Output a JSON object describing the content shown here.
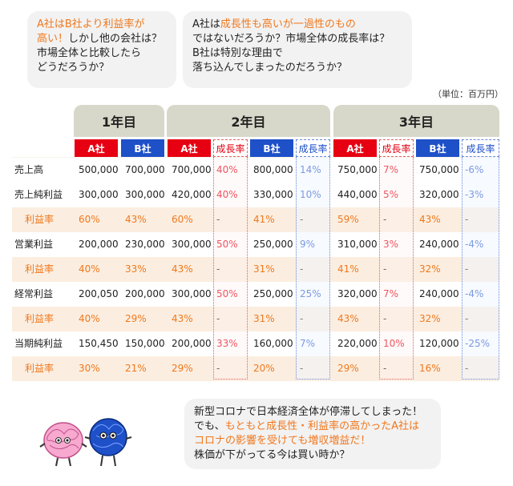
{
  "bubble1": {
    "line1_orange": "A社はB社より利益率が",
    "line2_orange": "高い！",
    "line2_rest": "しかし他の会社は？",
    "line3": "市場全体と比較したら",
    "line4": "どうだろうか？"
  },
  "bubble2": {
    "line1_pre": "A社は",
    "line1_orange": "成長性も高いが一過性のもの",
    "line2": "ではないだろうか？市場全体の成長率は？",
    "line3": "B社は特別な理由で",
    "line4": "落ち込んでしまったのだろうか？"
  },
  "unit": "（単位：百万円）",
  "years": [
    "1年目",
    "2年目",
    "3年目"
  ],
  "headers": {
    "a": "A社",
    "b": "B社",
    "growth": "成長率"
  },
  "rows": [
    {
      "label": "売上高",
      "type": "value",
      "v": [
        "500,000",
        "700,000",
        "700,000",
        "40%",
        "800,000",
        "14%",
        "750,000",
        "7%",
        "750,000",
        "-6%"
      ]
    },
    {
      "label": "売上純利益",
      "type": "value",
      "v": [
        "300,000",
        "300,000",
        "420,000",
        "40%",
        "330,000",
        "10%",
        "440,000",
        "5%",
        "320,000",
        "-3%"
      ]
    },
    {
      "label": "利益率",
      "type": "rate",
      "v": [
        "60%",
        "43%",
        "60%",
        "-",
        "41%",
        "-",
        "59%",
        "-",
        "43%",
        "-"
      ]
    },
    {
      "label": "営業利益",
      "type": "value",
      "v": [
        "200,000",
        "230,000",
        "300,000",
        "50%",
        "250,000",
        "9%",
        "310,000",
        "3%",
        "240,000",
        "-4%"
      ]
    },
    {
      "label": "利益率",
      "type": "rate",
      "v": [
        "40%",
        "33%",
        "43%",
        "-",
        "31%",
        "-",
        "41%",
        "-",
        "32%",
        "-"
      ]
    },
    {
      "label": "経常利益",
      "type": "value",
      "v": [
        "200,050",
        "200,000",
        "300,000",
        "50%",
        "250,000",
        "25%",
        "320,000",
        "7%",
        "240,000",
        "-4%"
      ]
    },
    {
      "label": "利益率",
      "type": "rate",
      "v": [
        "40%",
        "29%",
        "43%",
        "-",
        "31%",
        "-",
        "43%",
        "-",
        "32%",
        "-"
      ]
    },
    {
      "label": "当期純利益",
      "type": "value",
      "v": [
        "150,450",
        "150,000",
        "200,000",
        "33%",
        "160,000",
        "7%",
        "220,000",
        "10%",
        "120,000",
        "-25%"
      ]
    },
    {
      "label": "利益率",
      "type": "rate",
      "v": [
        "30%",
        "21%",
        "29%",
        "-",
        "20%",
        "-",
        "29%",
        "-",
        "16%",
        "-"
      ]
    }
  ],
  "bubble3": {
    "line1": "新型コロナで日本経済全体が停滞してしまった！",
    "line2_pre": "でも、",
    "line2_orange": "もともと成長性・利益率の高かったA社は",
    "line3_orange": "コロナの影響を受けても増収増益だ！",
    "line4": "株価が下がってる今は買い時か？"
  },
  "colors": {
    "a_red": "#e60012",
    "b_blue": "#1e50c8",
    "accent_orange": "#f0781e",
    "year_header": "#d8d8ca"
  },
  "icons": [
    "pink-character-icon",
    "blue-character-icon"
  ]
}
